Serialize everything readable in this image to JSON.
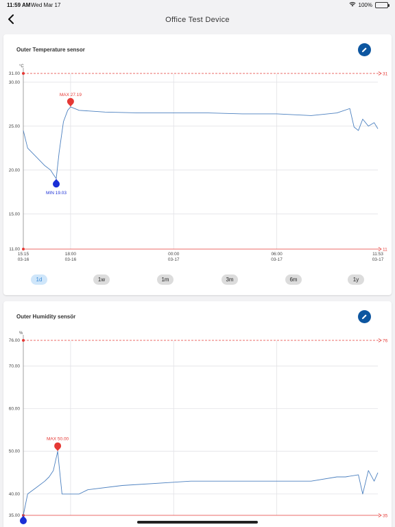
{
  "status": {
    "time": "11:59 AM",
    "date": "Wed Mar 17",
    "battery": "100%"
  },
  "nav": {
    "title": "Office Test Device"
  },
  "sensors": [
    {
      "title": "Outer Temperature sensor",
      "unit": "°C",
      "y_ticks": [
        "31.00",
        "30.00",
        "25.00",
        "20.00",
        "15.00",
        "11.00"
      ],
      "right_top": "31",
      "right_bottom": "11",
      "max_label": "MAX 27.19",
      "min_label": "MIN 19.03",
      "x_ticks": [
        {
          "time": "15:15",
          "date": "03-16"
        },
        {
          "time": "18:00",
          "date": "03-16"
        },
        {
          "time": "00:00",
          "date": "03-17"
        },
        {
          "time": "06:00",
          "date": "03-17"
        },
        {
          "time": "11:53",
          "date": "03-17"
        }
      ],
      "ranges": [
        "1d",
        "1w",
        "1m",
        "3m",
        "6m",
        "1y"
      ],
      "active_range": "1d"
    },
    {
      "title": "Outer Humidity sensör",
      "unit": "%",
      "y_ticks": [
        "76.00",
        "70.00",
        "60.00",
        "50.00",
        "40.00",
        "35.00"
      ],
      "right_top": "76",
      "right_bottom": "35",
      "max_label": "MAX 50.00"
    }
  ],
  "colors": {
    "line": "#4a7fbf",
    "limit": "#e53935",
    "min_marker": "#1a2fd6",
    "max_marker": "#e53935",
    "accent": "#0d56a0"
  },
  "chart_data": [
    {
      "type": "line",
      "title": "",
      "ylabel": "°C",
      "ylim": [
        11,
        31
      ],
      "thresholds": {
        "upper": 31,
        "lower": 11
      },
      "x": [
        "03-16 15:15",
        "03-16 15:30",
        "03-16 16:00",
        "03-16 16:30",
        "03-16 16:50",
        "03-16 17:00",
        "03-16 17:10",
        "03-16 17:20",
        "03-16 17:35",
        "03-16 17:50",
        "03-16 18:00",
        "03-16 18:30",
        "03-16 20:00",
        "03-16 22:00",
        "03-17 00:00",
        "03-17 02:00",
        "03-17 04:00",
        "03-17 06:00",
        "03-17 08:00",
        "03-17 09:30",
        "03-17 10:15",
        "03-17 10:30",
        "03-17 10:45",
        "03-17 11:00",
        "03-17 11:20",
        "03-17 11:40",
        "03-17 11:53"
      ],
      "series": [
        {
          "values": [
            24.5,
            22.5,
            21.5,
            20.5,
            20.0,
            19.5,
            19.03,
            22.0,
            25.5,
            26.8,
            27.19,
            26.8,
            26.6,
            26.5,
            26.5,
            26.5,
            26.4,
            26.4,
            26.2,
            26.5,
            27.0,
            24.9,
            24.5,
            25.8,
            25.0,
            25.4,
            24.7
          ]
        }
      ],
      "annotations": [
        {
          "type": "max",
          "value": 27.19,
          "x": "03-16 18:00"
        },
        {
          "type": "min",
          "value": 19.03,
          "x": "03-16 17:10"
        }
      ]
    },
    {
      "type": "line",
      "title": "",
      "ylabel": "%",
      "ylim": [
        35,
        76
      ],
      "thresholds": {
        "upper": 76,
        "lower": 35
      },
      "x": [
        "03-16 15:15",
        "03-16 15:30",
        "03-16 16:00",
        "03-16 16:30",
        "03-16 16:45",
        "03-16 17:00",
        "03-16 17:15",
        "03-16 17:30",
        "03-16 18:30",
        "03-16 19:00",
        "03-16 21:00",
        "03-17 01:00",
        "03-17 06:00",
        "03-17 08:00",
        "03-17 09:30",
        "03-17 10:00",
        "03-17 10:45",
        "03-17 11:00",
        "03-17 11:20",
        "03-17 11:40",
        "03-17 11:53"
      ],
      "series": [
        {
          "values": [
            35.0,
            40.0,
            41.5,
            43.0,
            44.0,
            45.5,
            50.0,
            40.0,
            40.0,
            41.0,
            42.0,
            43.0,
            43.0,
            43.0,
            44.0,
            44.0,
            44.5,
            40.0,
            45.5,
            43.0,
            45.0
          ]
        }
      ],
      "annotations": [
        {
          "type": "max",
          "value": 50.0,
          "x": "03-16 17:15"
        },
        {
          "type": "min",
          "value": 35.0,
          "x": "03-16 15:15"
        }
      ]
    }
  ]
}
